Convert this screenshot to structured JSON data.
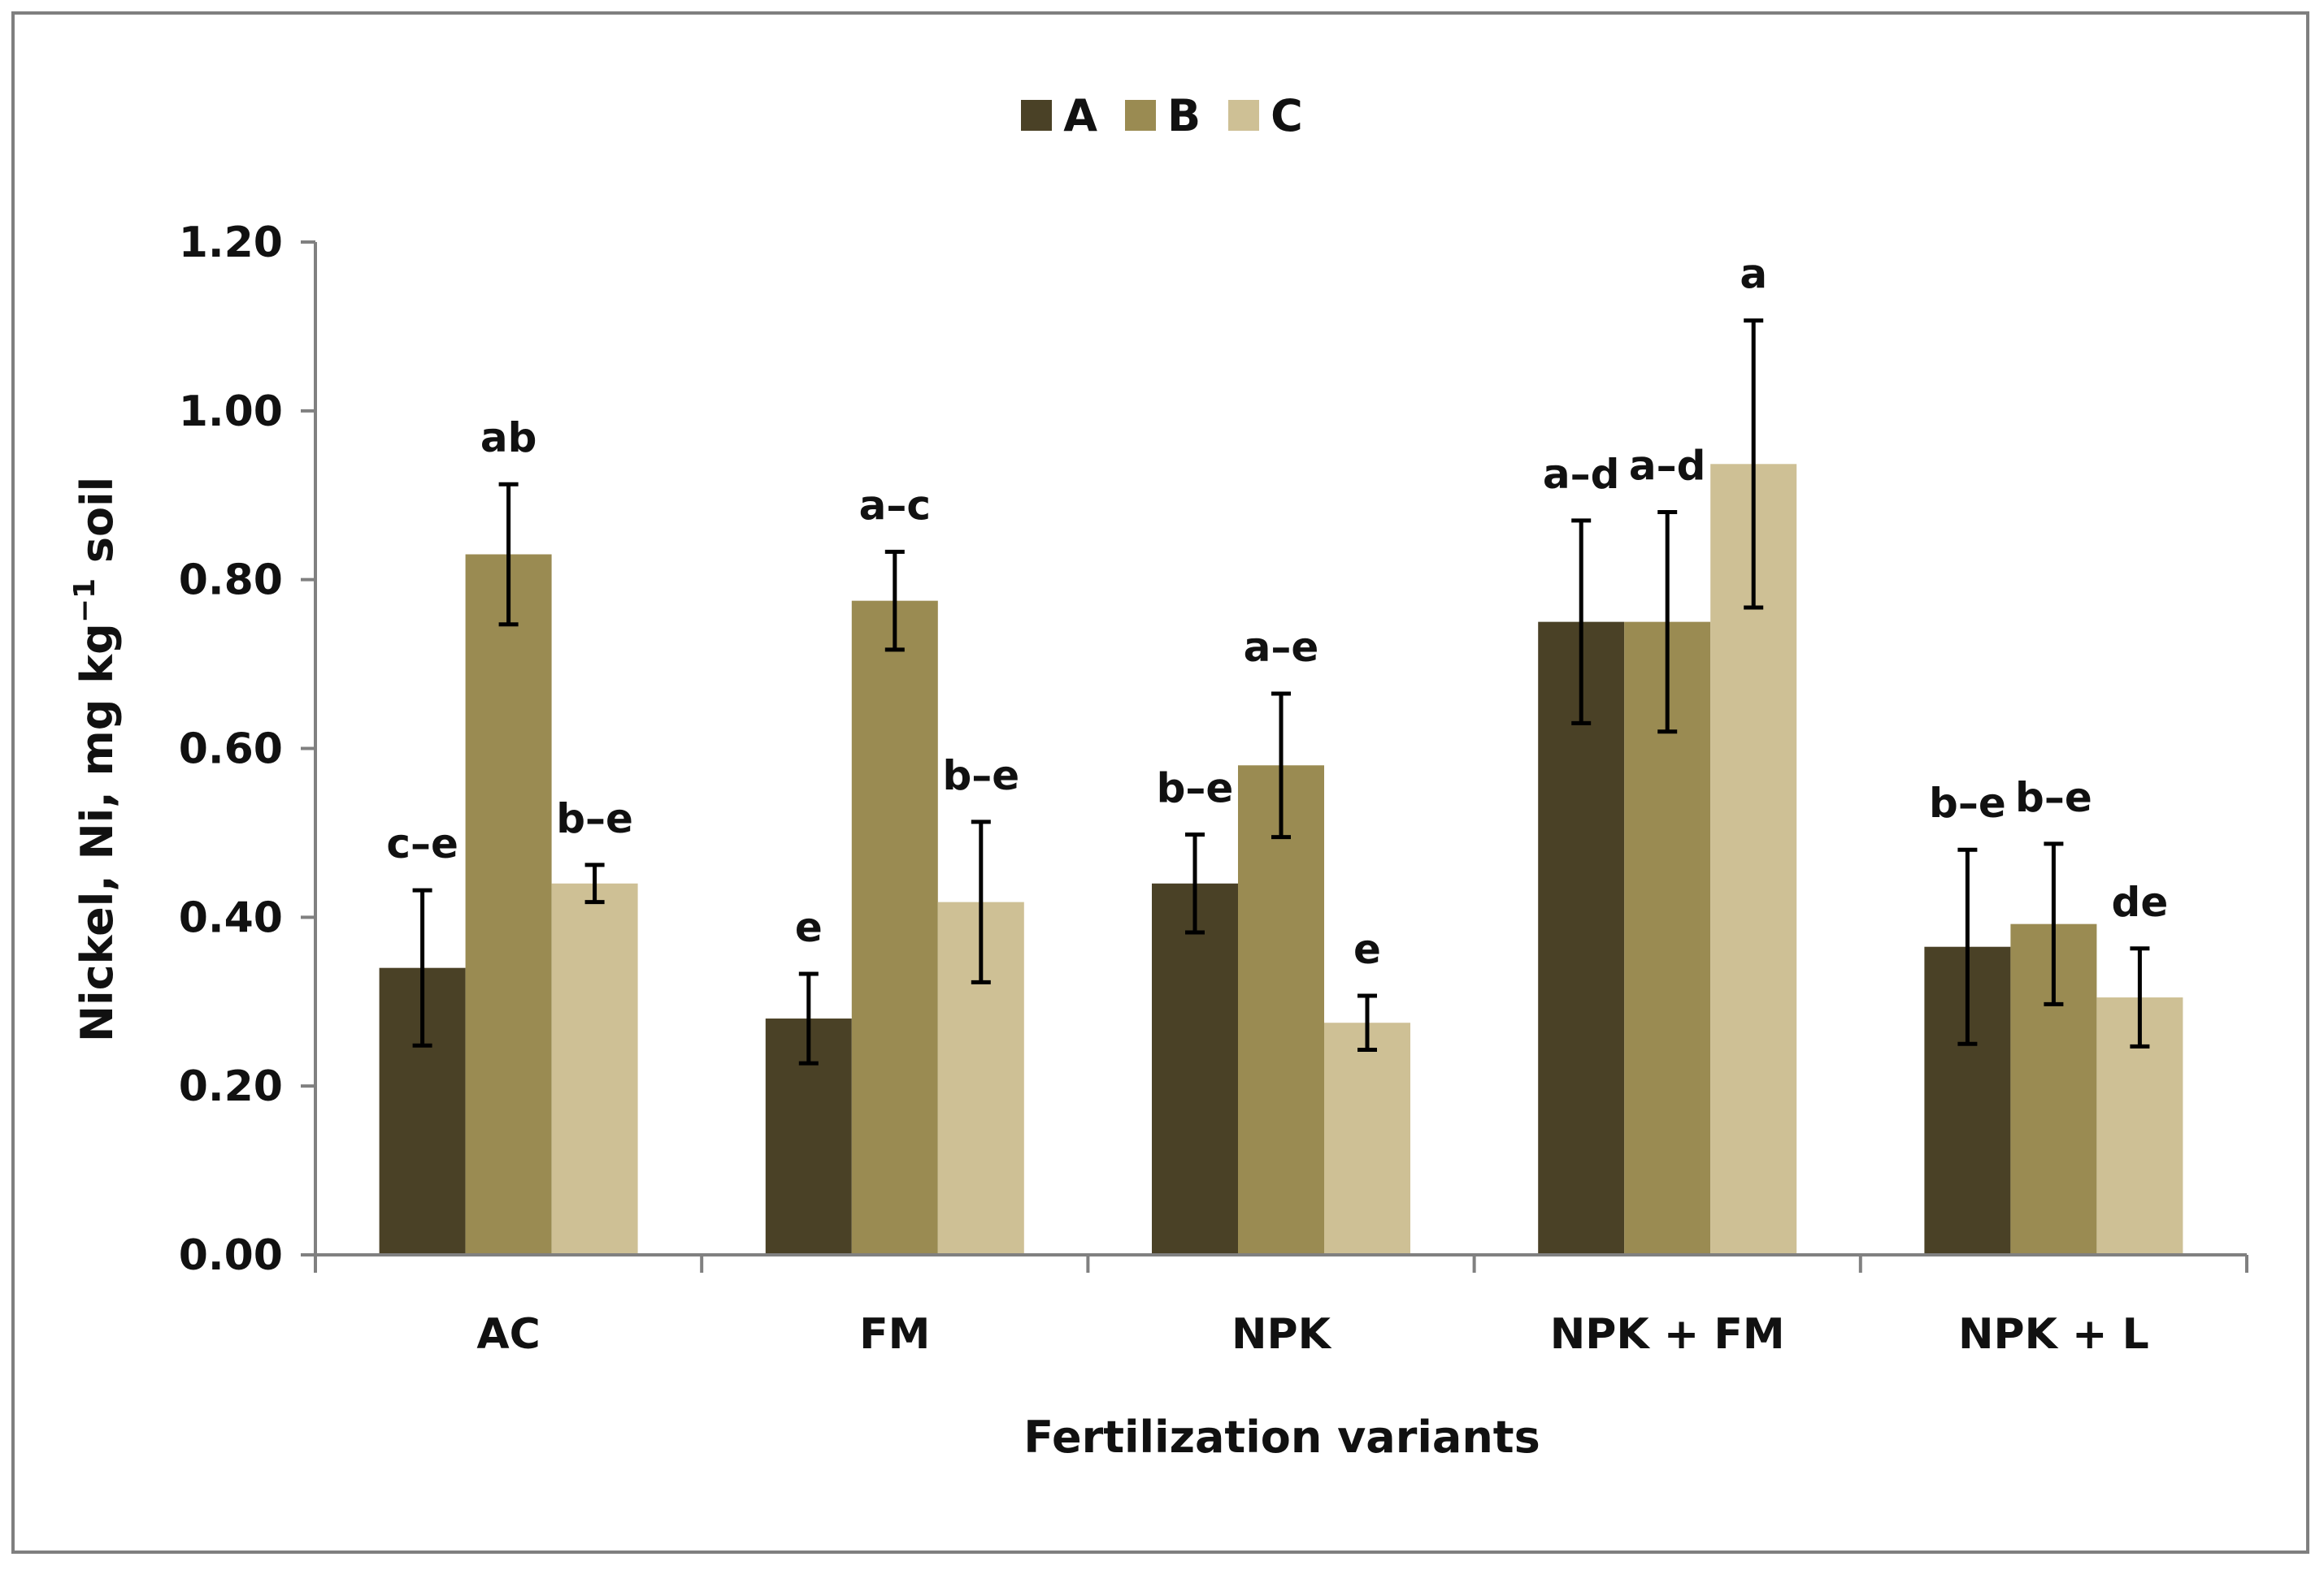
{
  "chart_data": {
    "type": "bar",
    "title": "",
    "xlabel": "Fertilization variants",
    "ylabel_main": "Nickel, Ni, mg kg",
    "ylabel_sup": "−1",
    "ylabel_tail": " soil",
    "ylim": [
      0,
      1.2
    ],
    "yticks": [
      "0.00",
      "0.20",
      "0.40",
      "0.60",
      "0.80",
      "1.00",
      "1.20"
    ],
    "ytick_values": [
      0,
      0.2,
      0.4,
      0.6,
      0.8,
      1.0,
      1.2
    ],
    "legend_position": "top-center",
    "categories": [
      "AC",
      "FM",
      "NPK",
      "NPK + FM",
      "NPK + L"
    ],
    "series": [
      {
        "name": "A",
        "color": "#4a4126",
        "values": [
          0.34,
          0.28,
          0.44,
          0.75,
          0.365
        ],
        "errors": [
          0.092,
          0.053,
          0.058,
          0.12,
          0.115
        ],
        "labels": [
          "c–e",
          "e",
          "b–e",
          "a–d",
          "b–e"
        ]
      },
      {
        "name": "B",
        "color": "#9a8b52",
        "values": [
          0.83,
          0.775,
          0.58,
          0.75,
          0.392
        ],
        "errors": [
          0.083,
          0.058,
          0.085,
          0.13,
          0.095
        ],
        "labels": [
          "ab",
          "a–c",
          "a–e",
          "a–d",
          "b–e"
        ]
      },
      {
        "name": "C",
        "color": "#cec095",
        "values": [
          0.44,
          0.418,
          0.275,
          0.937,
          0.305
        ],
        "errors": [
          0.022,
          0.095,
          0.032,
          0.17,
          0.058
        ],
        "labels": [
          "b–e",
          "b–e",
          "e",
          "a",
          "de"
        ]
      }
    ]
  }
}
